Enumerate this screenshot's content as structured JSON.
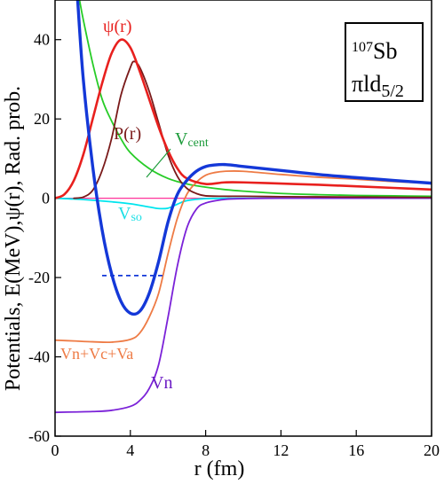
{
  "chart_data": {
    "type": "line",
    "xlabel": "r (fm)",
    "ylabel": "Potentials, E(MeV),ψ(r), Rad. prob.",
    "xlim": [
      0,
      20
    ],
    "ylim": [
      -60,
      50
    ],
    "xticks": [
      0,
      4,
      8,
      12,
      16,
      20
    ],
    "yticks": [
      -60,
      -40,
      -20,
      0,
      20,
      40
    ],
    "grid": false,
    "annotation": {
      "nucleus_mass": "107",
      "nucleus_symbol": "Sb",
      "state": "πld",
      "state_sub": "5/2"
    },
    "energy_level": {
      "value": -19.5,
      "x_range": [
        2.5,
        5.8
      ]
    },
    "series": [
      {
        "name": "ψ(r)",
        "color": "#e8201e",
        "x": [
          0,
          0.5,
          1,
          1.5,
          2,
          2.5,
          3,
          3.5,
          4,
          4.5,
          5,
          5.5,
          6,
          6.5,
          7,
          8,
          9,
          10,
          12,
          14,
          16,
          18,
          20
        ],
        "y": [
          0,
          1,
          4.5,
          11,
          20,
          29,
          36.5,
          40,
          38,
          32,
          25,
          18,
          12,
          7.5,
          5,
          3.6,
          4,
          4,
          3.7,
          3.4,
          3,
          2.6,
          2.2
        ]
      },
      {
        "name": "P(r)",
        "color": "#7a1a1a",
        "x": [
          1,
          1.5,
          2,
          2.5,
          3,
          3.5,
          4,
          4.2,
          4.5,
          5,
          5.5,
          6,
          6.5,
          7,
          7.5,
          8,
          9,
          10,
          12,
          14,
          16,
          18,
          20
        ],
        "y": [
          0,
          0.3,
          2,
          7,
          15,
          26,
          33,
          34.5,
          33,
          27,
          19,
          11,
          5.5,
          2.5,
          1.2,
          0.6,
          0.5,
          0.5,
          0.4,
          0.35,
          0.3,
          0.25,
          0.2
        ]
      },
      {
        "name": "V_cent",
        "color": "#27cc27",
        "x": [
          1.3,
          1.5,
          2,
          2.5,
          3,
          3.5,
          4,
          5,
          6,
          7,
          8,
          9,
          10,
          12,
          14,
          16,
          18,
          20
        ],
        "y": [
          50,
          45,
          34,
          25,
          19.5,
          15,
          11.5,
          7.5,
          5,
          3.6,
          2.8,
          2.2,
          1.8,
          1.2,
          0.9,
          0.7,
          0.6,
          0.5
        ]
      },
      {
        "name": "V_so",
        "color": "#00e5ee",
        "x": [
          0,
          1,
          2,
          3,
          4,
          5,
          5.5,
          6,
          6.5,
          7,
          8,
          10,
          12,
          20
        ],
        "y": [
          0,
          -0.2,
          -0.5,
          -0.9,
          -1.4,
          -2.2,
          -2.6,
          -2.5,
          -1.5,
          -0.6,
          -0.1,
          0,
          0,
          0
        ]
      },
      {
        "name": "Vn+Vc+Va",
        "color": "#ee7b45",
        "x": [
          0,
          1,
          2,
          3,
          4,
          4.5,
          5,
          5.5,
          6,
          6.5,
          7,
          7.5,
          8,
          8.5,
          9,
          10,
          12,
          14,
          16,
          18,
          20
        ],
        "y": [
          -35.8,
          -36,
          -36.2,
          -36.3,
          -35.6,
          -34,
          -30,
          -24,
          -14,
          -5,
          1,
          4,
          5.8,
          6.5,
          6.8,
          6.8,
          6,
          5.3,
          4.8,
          4.2,
          3.8
        ]
      },
      {
        "name": "Vn",
        "color": "#7b22d8",
        "x": [
          0,
          1,
          2,
          3,
          4,
          4.5,
          5,
          5.5,
          6,
          6.5,
          7,
          7.5,
          8,
          9,
          10,
          12,
          16,
          20
        ],
        "y": [
          -54,
          -53.9,
          -53.8,
          -53.5,
          -52.5,
          -51,
          -48,
          -42,
          -30,
          -17,
          -7.5,
          -2.8,
          -1.2,
          -0.3,
          -0.1,
          0,
          0,
          0
        ]
      },
      {
        "name": "",
        "color": "#1438d8",
        "x": [
          1.2,
          1.5,
          2,
          2.5,
          3,
          3.5,
          4,
          4.5,
          5,
          5.5,
          6,
          6.5,
          7,
          7.5,
          8,
          8.5,
          9,
          9.5,
          10,
          12,
          14,
          16,
          18,
          20
        ],
        "y": [
          50,
          30,
          8,
          -8,
          -19,
          -26,
          -29,
          -28.5,
          -24,
          -16,
          -6,
          1,
          4.5,
          6.8,
          8,
          8.4,
          8.5,
          8.3,
          8,
          7,
          6,
          5.2,
          4.5,
          3.8
        ]
      },
      {
        "name": "",
        "color": "#ff3399",
        "x": [
          0,
          20
        ],
        "y": [
          0,
          0
        ]
      }
    ]
  },
  "labels": {
    "psi": "ψ(r)",
    "prob": "P(r)",
    "vcent_main": "V",
    "vcent_sub": "cent",
    "vso_main": "V",
    "vso_sub": "so",
    "vtotal": "Vn+Vc+Va",
    "vn": "Vn"
  }
}
